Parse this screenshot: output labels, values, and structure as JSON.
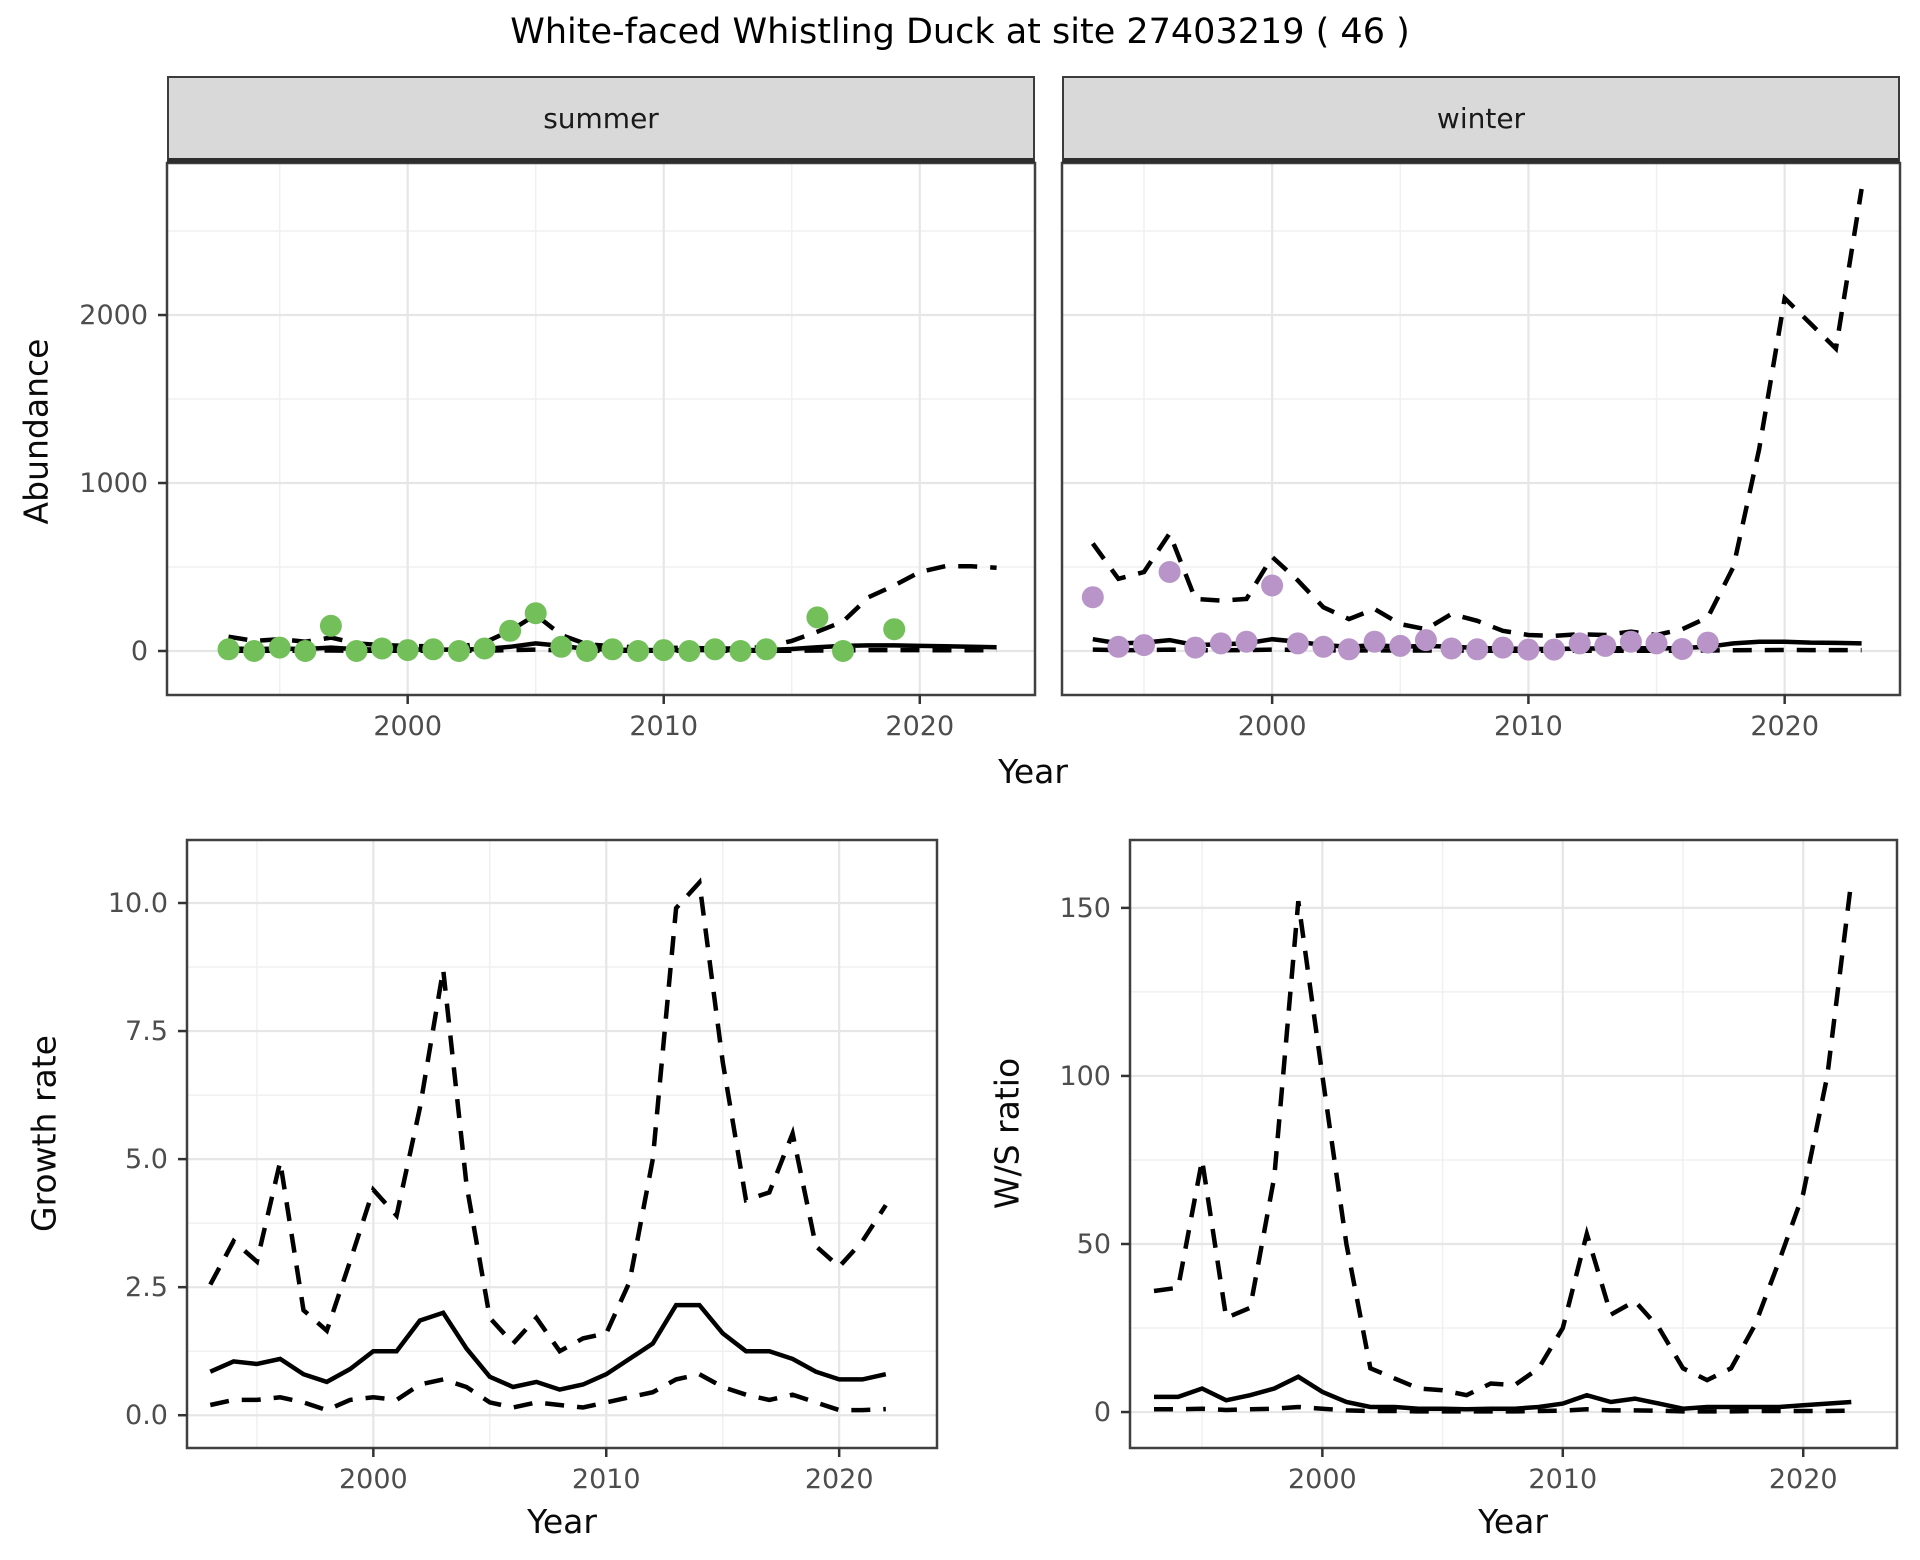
{
  "title": "White-faced Whistling Duck at site 27403219 ( 46 )",
  "axis_titles": {
    "abundance": "Abundance",
    "year": "Year",
    "growth_rate": "Growth rate",
    "ws_ratio": "W/S ratio"
  },
  "colors": {
    "summer_point": "#73c05b",
    "winter_point": "#b894c9",
    "line": "#000000",
    "grid_major": "#e6e6e6",
    "grid_minor": "#f0f0f0",
    "panel_border": "#404040",
    "strip_bg": "#d9d9d9",
    "tick_text": "#4d4d4d"
  },
  "chart_data": [
    {
      "id": "abundance_summer",
      "type": "line",
      "facet_label": "summer",
      "xlabel": "Year",
      "ylabel": "Abundance",
      "xlim": [
        1990.6,
        2024.5
      ],
      "ylim": [
        -262,
        2905
      ],
      "x_ticks": [
        2000,
        2010,
        2020
      ],
      "x_tick_labels": [
        "2000",
        "2010",
        "2020"
      ],
      "x_minor_ticks": [
        1995,
        2005,
        2015
      ],
      "y_ticks": [
        0,
        1000,
        2000
      ],
      "y_tick_labels": [
        "0",
        "1000",
        "2000"
      ],
      "y_minor_ticks": [
        500,
        1500,
        2500
      ],
      "show_y_axis": true,
      "points": {
        "color_key": "summer_point",
        "years": [
          1993,
          1994,
          1995,
          1996,
          1997,
          1998,
          1999,
          2000,
          2001,
          2002,
          2003,
          2004,
          2005,
          2006,
          2007,
          2008,
          2009,
          2010,
          2011,
          2012,
          2013,
          2014,
          2016,
          2017,
          2019
        ],
        "values": [
          10,
          0,
          20,
          0,
          150,
          0,
          15,
          5,
          10,
          0,
          15,
          120,
          225,
          25,
          0,
          10,
          0,
          5,
          0,
          10,
          0,
          10,
          200,
          0,
          130
        ]
      },
      "series": [
        {
          "name": "upper_ci",
          "style": "dashed",
          "years": [
            1993,
            1994,
            1995,
            1996,
            1997,
            1998,
            1999,
            2000,
            2001,
            2002,
            2003,
            2004,
            2005,
            2006,
            2007,
            2008,
            2009,
            2010,
            2011,
            2012,
            2013,
            2014,
            2015,
            2016,
            2017,
            2018,
            2019,
            2020,
            2021,
            2022,
            2023
          ],
          "values": [
            85,
            60,
            70,
            55,
            80,
            45,
            35,
            30,
            28,
            25,
            50,
            120,
            215,
            95,
            40,
            28,
            22,
            20,
            18,
            15,
            15,
            25,
            60,
            115,
            175,
            320,
            390,
            470,
            505,
            505,
            495
          ]
        },
        {
          "name": "lower_ci",
          "style": "dashed",
          "years": [
            1993,
            1994,
            1995,
            1996,
            1997,
            1998,
            1999,
            2000,
            2001,
            2002,
            2003,
            2004,
            2005,
            2006,
            2007,
            2008,
            2009,
            2010,
            2011,
            2012,
            2013,
            2014,
            2015,
            2016,
            2017,
            2018,
            2019,
            2020,
            2021,
            2022,
            2023
          ],
          "values": [
            2,
            2,
            2,
            2,
            3,
            1,
            1,
            1,
            1,
            1,
            2,
            5,
            8,
            4,
            2,
            1,
            1,
            1,
            1,
            1,
            1,
            1,
            2,
            3,
            4,
            5,
            5,
            5,
            4,
            4,
            4
          ]
        },
        {
          "name": "median",
          "style": "solid",
          "years": [
            1993,
            1994,
            1995,
            1996,
            1997,
            1998,
            1999,
            2000,
            2001,
            2002,
            2003,
            2004,
            2005,
            2006,
            2007,
            2008,
            2009,
            2010,
            2011,
            2012,
            2013,
            2014,
            2015,
            2016,
            2017,
            2018,
            2019,
            2020,
            2021,
            2022,
            2023
          ],
          "values": [
            15,
            12,
            14,
            12,
            20,
            10,
            8,
            8,
            8,
            8,
            12,
            25,
            45,
            30,
            12,
            8,
            6,
            5,
            5,
            5,
            5,
            6,
            12,
            22,
            30,
            33,
            33,
            30,
            28,
            25,
            22
          ]
        }
      ]
    },
    {
      "id": "abundance_winter",
      "type": "line",
      "facet_label": "winter",
      "xlabel": "Year",
      "ylabel": "Abundance",
      "xlim": [
        1991.8,
        2024.5
      ],
      "ylim": [
        -262,
        2905
      ],
      "x_ticks": [
        2000,
        2010,
        2020
      ],
      "x_tick_labels": [
        "2000",
        "2010",
        "2020"
      ],
      "x_minor_ticks": [
        1995,
        2005,
        2015
      ],
      "y_ticks": [
        0,
        1000,
        2000
      ],
      "y_tick_labels": [
        "0",
        "1000",
        "2000"
      ],
      "y_minor_ticks": [
        500,
        1500,
        2500
      ],
      "show_y_axis": false,
      "points": {
        "color_key": "winter_point",
        "years": [
          1993,
          1994,
          1995,
          1996,
          1997,
          1998,
          1999,
          2000,
          2001,
          2002,
          2003,
          2004,
          2005,
          2006,
          2007,
          2008,
          2009,
          2010,
          2011,
          2012,
          2013,
          2014,
          2015,
          2016,
          2017
        ],
        "values": [
          320,
          25,
          35,
          470,
          20,
          45,
          55,
          390,
          45,
          25,
          10,
          55,
          30,
          65,
          15,
          10,
          20,
          8,
          8,
          45,
          30,
          55,
          45,
          12,
          50
        ]
      },
      "series": [
        {
          "name": "upper_ci",
          "style": "dashed",
          "years": [
            1993,
            1994,
            1995,
            1996,
            1997,
            1998,
            1999,
            2000,
            2001,
            2002,
            2003,
            2004,
            2005,
            2006,
            2007,
            2008,
            2009,
            2010,
            2011,
            2012,
            2013,
            2014,
            2015,
            2016,
            2017,
            2018,
            2019,
            2020,
            2021,
            2022,
            2023
          ],
          "values": [
            640,
            430,
            470,
            700,
            310,
            300,
            310,
            560,
            420,
            260,
            190,
            250,
            160,
            130,
            220,
            180,
            120,
            95,
            90,
            100,
            95,
            115,
            95,
            130,
            200,
            500,
            1200,
            2100,
            1950,
            1800,
            2750
          ]
        },
        {
          "name": "lower_ci",
          "style": "dashed",
          "years": [
            1993,
            1994,
            1995,
            1996,
            1997,
            1998,
            1999,
            2000,
            2001,
            2002,
            2003,
            2004,
            2005,
            2006,
            2007,
            2008,
            2009,
            2010,
            2011,
            2012,
            2013,
            2014,
            2015,
            2016,
            2017,
            2018,
            2019,
            2020,
            2021,
            2022,
            2023
          ],
          "values": [
            8,
            5,
            5,
            8,
            4,
            4,
            5,
            8,
            6,
            4,
            3,
            4,
            3,
            3,
            3,
            2,
            2,
            2,
            2,
            2,
            2,
            2,
            2,
            2,
            3,
            4,
            5,
            6,
            5,
            5,
            5
          ]
        },
        {
          "name": "median",
          "style": "solid",
          "years": [
            1993,
            1994,
            1995,
            1996,
            1997,
            1998,
            1999,
            2000,
            2001,
            2002,
            2003,
            2004,
            2005,
            2006,
            2007,
            2008,
            2009,
            2010,
            2011,
            2012,
            2013,
            2014,
            2015,
            2016,
            2017,
            2018,
            2019,
            2020,
            2021,
            2022,
            2023
          ],
          "values": [
            70,
            45,
            50,
            65,
            35,
            40,
            45,
            70,
            55,
            35,
            25,
            35,
            25,
            30,
            25,
            18,
            15,
            12,
            12,
            15,
            15,
            18,
            15,
            18,
            25,
            45,
            55,
            55,
            50,
            48,
            45
          ]
        }
      ]
    },
    {
      "id": "growth_rate",
      "type": "line",
      "facet_label": "",
      "xlabel": "Year",
      "ylabel": "Growth rate",
      "xlim": [
        1992.0,
        2024.2
      ],
      "ylim": [
        -0.64,
        11.23
      ],
      "x_ticks": [
        2000,
        2010,
        2020
      ],
      "x_tick_labels": [
        "2000",
        "2010",
        "2020"
      ],
      "x_minor_ticks": [
        1995,
        2005,
        2015
      ],
      "y_ticks": [
        0,
        2.5,
        5,
        7.5,
        10
      ],
      "y_tick_labels": [
        "0.0",
        "2.5",
        "5.0",
        "7.5",
        "10.0"
      ],
      "y_minor_ticks": [
        1.25,
        3.75,
        6.25,
        8.75
      ],
      "show_y_axis": true,
      "points": null,
      "series": [
        {
          "name": "upper_ci",
          "style": "dashed",
          "years": [
            1993,
            1994,
            1995,
            1996,
            1997,
            1998,
            1999,
            2000,
            2001,
            2002,
            2003,
            2004,
            2005,
            2006,
            2007,
            2008,
            2009,
            2010,
            2011,
            2012,
            2013,
            2014,
            2015,
            2016,
            2017,
            2018,
            2019,
            2020,
            2021,
            2022
          ],
          "values": [
            2.55,
            3.4,
            3.0,
            4.95,
            2.05,
            1.65,
            3.0,
            4.4,
            3.9,
            6.0,
            8.7,
            4.5,
            1.9,
            1.4,
            1.9,
            1.25,
            1.5,
            1.6,
            2.6,
            5.0,
            9.9,
            10.4,
            6.9,
            4.2,
            4.35,
            5.5,
            3.3,
            2.9,
            3.4,
            4.1
          ]
        },
        {
          "name": "lower_ci",
          "style": "dashed",
          "years": [
            1993,
            1994,
            1995,
            1996,
            1997,
            1998,
            1999,
            2000,
            2001,
            2002,
            2003,
            2004,
            2005,
            2006,
            2007,
            2008,
            2009,
            2010,
            2011,
            2012,
            2013,
            2014,
            2015,
            2016,
            2017,
            2018,
            2019,
            2020,
            2021,
            2022
          ],
          "values": [
            0.2,
            0.3,
            0.3,
            0.35,
            0.25,
            0.1,
            0.3,
            0.35,
            0.3,
            0.6,
            0.7,
            0.55,
            0.25,
            0.15,
            0.25,
            0.2,
            0.15,
            0.25,
            0.35,
            0.45,
            0.7,
            0.8,
            0.55,
            0.4,
            0.3,
            0.4,
            0.25,
            0.1,
            0.1,
            0.12
          ]
        },
        {
          "name": "median",
          "style": "solid",
          "years": [
            1993,
            1994,
            1995,
            1996,
            1997,
            1998,
            1999,
            2000,
            2001,
            2002,
            2003,
            2004,
            2005,
            2006,
            2007,
            2008,
            2009,
            2010,
            2011,
            2012,
            2013,
            2014,
            2015,
            2016,
            2017,
            2018,
            2019,
            2020,
            2021,
            2022
          ],
          "values": [
            0.85,
            1.05,
            1.0,
            1.1,
            0.8,
            0.65,
            0.9,
            1.25,
            1.25,
            1.85,
            2.0,
            1.3,
            0.75,
            0.55,
            0.65,
            0.5,
            0.6,
            0.8,
            1.1,
            1.4,
            2.15,
            2.15,
            1.6,
            1.25,
            1.25,
            1.1,
            0.85,
            0.7,
            0.7,
            0.8
          ]
        }
      ]
    },
    {
      "id": "ws_ratio",
      "type": "line",
      "facet_label": "",
      "xlabel": "Year",
      "ylabel": "W/S ratio",
      "xlim": [
        1992.0,
        2023.9
      ],
      "ylim": [
        -10.7,
        170.2
      ],
      "x_ticks": [
        2000,
        2010,
        2020
      ],
      "x_tick_labels": [
        "2000",
        "2010",
        "2020"
      ],
      "x_minor_ticks": [
        1995,
        2005,
        2015
      ],
      "y_ticks": [
        0,
        50,
        100,
        150
      ],
      "y_tick_labels": [
        "0",
        "50",
        "100",
        "150"
      ],
      "y_minor_ticks": [
        25,
        75,
        125
      ],
      "show_y_axis": true,
      "points": null,
      "series": [
        {
          "name": "upper_ci",
          "style": "dashed",
          "years": [
            1993,
            1994,
            1995,
            1996,
            1997,
            1998,
            1999,
            2000,
            2001,
            2002,
            2003,
            2004,
            2005,
            2006,
            2007,
            2008,
            2009,
            2010,
            2011,
            2012,
            2013,
            2014,
            2015,
            2016,
            2017,
            2018,
            2019,
            2020,
            2021,
            2022
          ],
          "values": [
            36,
            37,
            75,
            28,
            31,
            70,
            152,
            100,
            50,
            13,
            10,
            7,
            6.5,
            5,
            8.5,
            8,
            13,
            25,
            53,
            29,
            33,
            25,
            13,
            9.5,
            13,
            26,
            45,
            65,
            100,
            158
          ]
        },
        {
          "name": "lower_ci",
          "style": "dashed",
          "years": [
            1993,
            1994,
            1995,
            1996,
            1997,
            1998,
            1999,
            2000,
            2001,
            2002,
            2003,
            2004,
            2005,
            2006,
            2007,
            2008,
            2009,
            2010,
            2011,
            2012,
            2013,
            2014,
            2015,
            2016,
            2017,
            2018,
            2019,
            2020,
            2021,
            2022
          ],
          "values": [
            0.8,
            0.8,
            1,
            0.6,
            0.8,
            1,
            1.5,
            1,
            0.5,
            0.3,
            0.3,
            0.2,
            0.2,
            0.2,
            0.2,
            0.2,
            0.3,
            0.4,
            0.8,
            0.5,
            0.5,
            0.4,
            0.2,
            0.2,
            0.2,
            0.3,
            0.3,
            0.3,
            0.3,
            0.4
          ]
        },
        {
          "name": "median",
          "style": "solid",
          "years": [
            1993,
            1994,
            1995,
            1996,
            1997,
            1998,
            1999,
            2000,
            2001,
            2002,
            2003,
            2004,
            2005,
            2006,
            2007,
            2008,
            2009,
            2010,
            2011,
            2012,
            2013,
            2014,
            2015,
            2016,
            2017,
            2018,
            2019,
            2020,
            2021,
            2022
          ],
          "values": [
            4.5,
            4.5,
            7,
            3.5,
            5,
            7,
            10.5,
            6,
            3,
            1.5,
            1.5,
            1,
            1,
            0.8,
            1,
            1,
            1.5,
            2.5,
            5,
            3,
            4,
            2.5,
            1,
            1.5,
            1.5,
            1.5,
            1.5,
            2,
            2.5,
            3
          ]
        }
      ]
    }
  ]
}
